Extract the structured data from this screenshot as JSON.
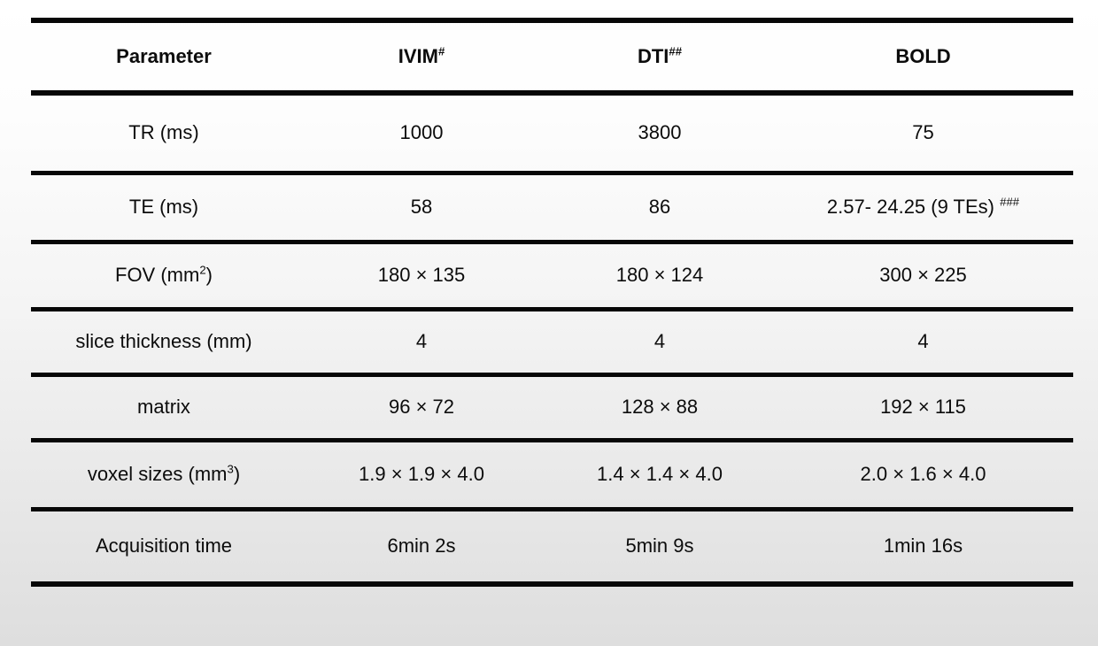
{
  "page": {
    "background_top_color": "#ffffff",
    "background_bottom_color": "#dedede",
    "rule_color": "#070707",
    "text_color": "#0c0c0c"
  },
  "table": {
    "header": [
      {
        "pre": "Parameter",
        "sup": "",
        "post": ""
      },
      {
        "pre": "IVIM",
        "sup": "#",
        "post": ""
      },
      {
        "pre": "DTI",
        "sup": "##",
        "post": ""
      },
      {
        "pre": "BOLD",
        "sup": "",
        "post": ""
      }
    ],
    "rows": [
      [
        {
          "pre": "TR (ms)",
          "sup": "",
          "post": ""
        },
        {
          "pre": "1000",
          "sup": "",
          "post": ""
        },
        {
          "pre": "3800",
          "sup": "",
          "post": ""
        },
        {
          "pre": "75",
          "sup": "",
          "post": ""
        }
      ],
      [
        {
          "pre": "TE (ms)",
          "sup": "",
          "post": ""
        },
        {
          "pre": "58",
          "sup": "",
          "post": ""
        },
        {
          "pre": "86",
          "sup": "",
          "post": ""
        },
        {
          "pre": "2.57- 24.25 (9 TEs) ",
          "sup": "###",
          "post": ""
        }
      ],
      [
        {
          "pre": "FOV (mm",
          "sup": "2",
          "post": ")"
        },
        {
          "pre": "180 × 135",
          "sup": "",
          "post": ""
        },
        {
          "pre": "180 × 124",
          "sup": "",
          "post": ""
        },
        {
          "pre": "300 × 225",
          "sup": "",
          "post": ""
        }
      ],
      [
        {
          "pre": "slice thickness (mm)",
          "sup": "",
          "post": ""
        },
        {
          "pre": "4",
          "sup": "",
          "post": ""
        },
        {
          "pre": "4",
          "sup": "",
          "post": ""
        },
        {
          "pre": "4",
          "sup": "",
          "post": ""
        }
      ],
      [
        {
          "pre": "matrix",
          "sup": "",
          "post": ""
        },
        {
          "pre": "96 × 72",
          "sup": "",
          "post": ""
        },
        {
          "pre": "128 × 88",
          "sup": "",
          "post": ""
        },
        {
          "pre": "192 × 115",
          "sup": "",
          "post": ""
        }
      ],
      [
        {
          "pre": "voxel sizes (mm",
          "sup": "3",
          "post": ")"
        },
        {
          "pre": "1.9 × 1.9 × 4.0",
          "sup": "",
          "post": ""
        },
        {
          "pre": "1.4 × 1.4 × 4.0",
          "sup": "",
          "post": ""
        },
        {
          "pre": "2.0 × 1.6 × 4.0",
          "sup": "",
          "post": ""
        }
      ],
      [
        {
          "pre": "Acquisition time",
          "sup": "",
          "post": ""
        },
        {
          "pre": "6min 2s",
          "sup": "",
          "post": ""
        },
        {
          "pre": "5min 9s",
          "sup": "",
          "post": ""
        },
        {
          "pre": "1min 16s",
          "sup": "",
          "post": ""
        }
      ]
    ]
  }
}
